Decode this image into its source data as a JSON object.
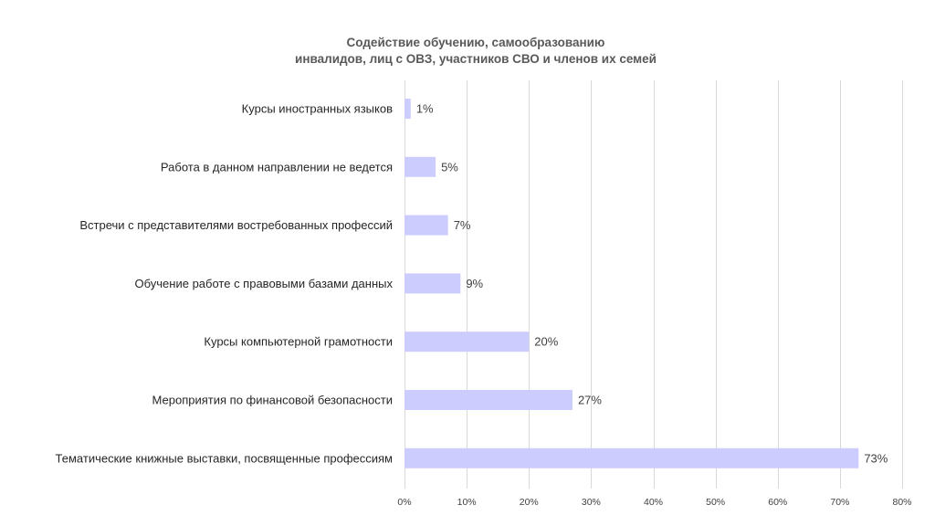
{
  "chart_data": {
    "type": "bar",
    "orientation": "horizontal",
    "title": [
      "Содействие обучению, самообразованию",
      "инвалидов, лиц с ОВЗ, участников СВО и членов их семей"
    ],
    "xlabel": "",
    "ylabel": "",
    "categories": [
      "Курсы иностранных языков",
      "Работа в данном направлении не ведется",
      "Встречи с представителями востребованных профессий",
      "Обучение работе с правовыми базами данных",
      "Курсы компьютерной грамотности",
      "Мероприятия по финансовой безопасности",
      "Тематические книжные выставки, посвященные профессиям"
    ],
    "values": [
      1,
      5,
      7,
      9,
      20,
      27,
      73
    ],
    "data_labels": [
      "1%",
      "5%",
      "7%",
      "9%",
      "20%",
      "27%",
      "73%"
    ],
    "xlim": [
      0,
      80
    ],
    "ticks": [
      0,
      10,
      20,
      30,
      40,
      50,
      60,
      70,
      80
    ],
    "tick_labels": [
      "0%",
      "10%",
      "20%",
      "30%",
      "40%",
      "50%",
      "60%",
      "70%",
      "80%"
    ],
    "grid": true,
    "legend": "none",
    "bar_color": "#ccccff",
    "grid_color": "#d9d9d9"
  }
}
